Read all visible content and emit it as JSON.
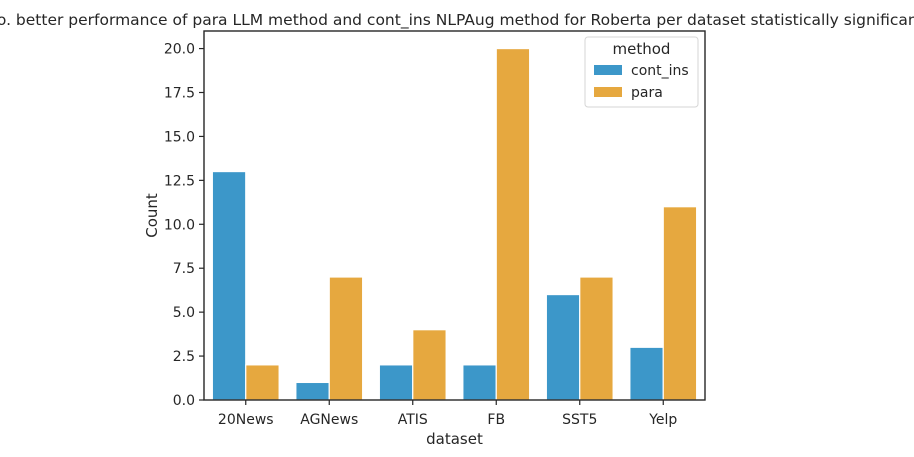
{
  "chart_data": {
    "type": "bar",
    "title": "No. better performance of para LLM method and cont_ins NLPAug method for Roberta per dataset statistically significant.",
    "xlabel": "dataset",
    "ylabel": "Count",
    "categories": [
      "20News",
      "AGNews",
      "ATIS",
      "FB",
      "SST5",
      "Yelp"
    ],
    "series": [
      {
        "name": "cont_ins",
        "color": "#3c97c9",
        "values": [
          13,
          1,
          2,
          2,
          6,
          3
        ]
      },
      {
        "name": "para",
        "color": "#e6a83f",
        "values": [
          2,
          7,
          4,
          20,
          7,
          11
        ]
      }
    ],
    "ylim": [
      0,
      21
    ],
    "yticks": [
      "0.0",
      "2.5",
      "5.0",
      "7.5",
      "10.0",
      "12.5",
      "15.0",
      "17.5",
      "20.0"
    ],
    "legend": {
      "title": "method",
      "placement": "top-right"
    },
    "grid": false
  }
}
